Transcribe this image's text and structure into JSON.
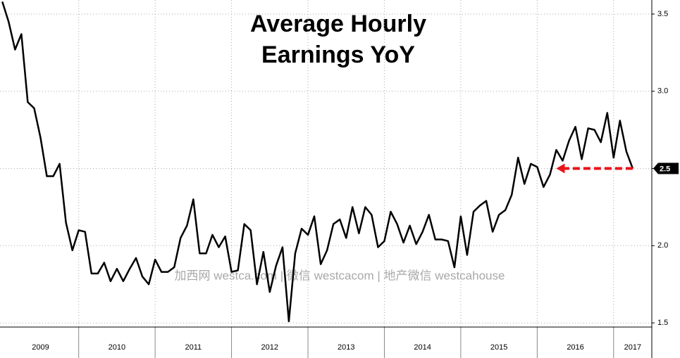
{
  "chart_data": {
    "type": "line",
    "title": [
      "Average Hourly",
      "Earnings YoY"
    ],
    "watermark": "加西网 westca.com | 微信 westcacom | 地产微信 westcahouse",
    "x": [
      2009.0,
      2009.083,
      2009.167,
      2009.25,
      2009.333,
      2009.417,
      2009.5,
      2009.583,
      2009.667,
      2009.75,
      2009.833,
      2009.917,
      2010.0,
      2010.083,
      2010.167,
      2010.25,
      2010.333,
      2010.417,
      2010.5,
      2010.583,
      2010.667,
      2010.75,
      2010.833,
      2010.917,
      2011.0,
      2011.083,
      2011.167,
      2011.25,
      2011.333,
      2011.417,
      2011.5,
      2011.583,
      2011.667,
      2011.75,
      2011.833,
      2011.917,
      2012.0,
      2012.083,
      2012.167,
      2012.25,
      2012.333,
      2012.417,
      2012.5,
      2012.583,
      2012.667,
      2012.75,
      2012.833,
      2012.917,
      2013.0,
      2013.083,
      2013.167,
      2013.25,
      2013.333,
      2013.417,
      2013.5,
      2013.583,
      2013.667,
      2013.75,
      2013.833,
      2013.917,
      2014.0,
      2014.083,
      2014.167,
      2014.25,
      2014.333,
      2014.417,
      2014.5,
      2014.583,
      2014.667,
      2014.75,
      2014.833,
      2014.917,
      2015.0,
      2015.083,
      2015.167,
      2015.25,
      2015.333,
      2015.417,
      2015.5,
      2015.583,
      2015.667,
      2015.75,
      2015.833,
      2015.917,
      2016.0,
      2016.083,
      2016.167,
      2016.25,
      2016.333,
      2016.417,
      2016.5,
      2016.583,
      2016.667,
      2016.75,
      2016.833,
      2016.917,
      2017.0,
      2017.083,
      2017.167,
      2017.25
    ],
    "series": [
      {
        "color": "#000000",
        "values": [
          3.58,
          3.45,
          3.27,
          3.37,
          2.93,
          2.89,
          2.7,
          2.45,
          2.45,
          2.53,
          2.15,
          1.97,
          2.1,
          2.09,
          1.82,
          1.82,
          1.89,
          1.77,
          1.85,
          1.77,
          1.85,
          1.92,
          1.8,
          1.75,
          1.91,
          1.83,
          1.83,
          1.86,
          2.05,
          2.13,
          2.3,
          1.95,
          1.95,
          2.07,
          1.99,
          2.06,
          1.83,
          1.84,
          2.14,
          2.1,
          1.75,
          1.96,
          1.7,
          1.87,
          1.99,
          1.51,
          1.95,
          2.11,
          2.07,
          2.19,
          1.88,
          1.97,
          2.14,
          2.17,
          2.05,
          2.25,
          2.08,
          2.25,
          2.2,
          1.99,
          2.03,
          2.22,
          2.14,
          2.02,
          2.13,
          2.01,
          2.09,
          2.2,
          2.04,
          2.04,
          2.03,
          1.86,
          2.19,
          1.94,
          2.22,
          2.26,
          2.29,
          2.09,
          2.2,
          2.23,
          2.33,
          2.57,
          2.4,
          2.53,
          2.51,
          2.38,
          2.46,
          2.62,
          2.55,
          2.68,
          2.77,
          2.56,
          2.76,
          2.75,
          2.67,
          2.86,
          2.57,
          2.81,
          2.61,
          2.5
        ]
      }
    ],
    "end_label": "2.5",
    "arrow": {
      "color": "#e8151b",
      "from_x": 2017.25,
      "to_x": 2016.25,
      "y": 2.5
    },
    "xlim": [
      2008.97,
      2017.5
    ],
    "xticks": [
      {
        "value": 2009.5,
        "label": "2009"
      },
      {
        "value": 2010.5,
        "label": "2010"
      },
      {
        "value": 2011.5,
        "label": "2011"
      },
      {
        "value": 2012.5,
        "label": "2012"
      },
      {
        "value": 2013.5,
        "label": "2013"
      },
      {
        "value": 2014.5,
        "label": "2014"
      },
      {
        "value": 2015.5,
        "label": "2015"
      },
      {
        "value": 2016.5,
        "label": "2016"
      },
      {
        "value": 2017.25,
        "label": "2017"
      }
    ],
    "xseparators": [
      2010,
      2011,
      2012,
      2013,
      2014,
      2015,
      2016,
      2017
    ],
    "ylim": [
      1.473,
      3.591
    ],
    "yticks": [
      1.5,
      {
        "value": 2.0,
        "label": "2.0"
      },
      2.5,
      {
        "value": 3.0,
        "label": "3.0"
      },
      3.5
    ],
    "grid": true
  }
}
